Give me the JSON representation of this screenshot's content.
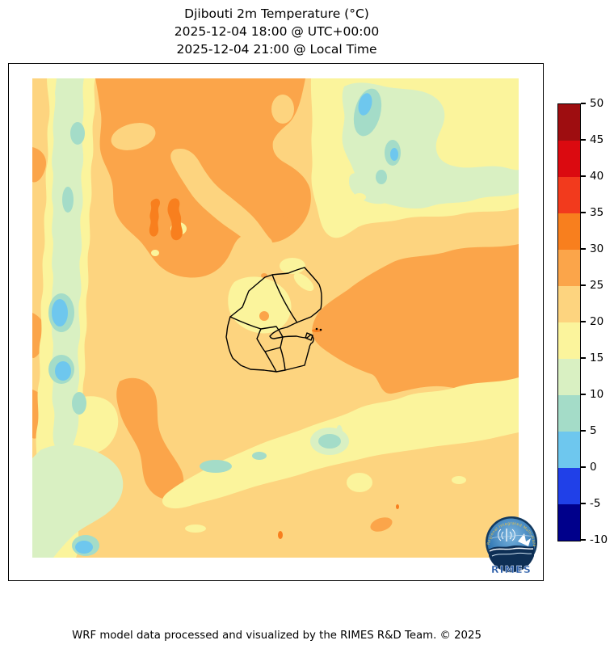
{
  "title": {
    "line1": "Djibouti 2m Temperature (°C)",
    "line2": "2025-12-04 18:00 @ UTC+00:00",
    "line3": "2025-12-04 21:00 @ Local Time"
  },
  "footer": {
    "credit": "WRF model data processed and visualized by the RIMES R&D Team. © 2025"
  },
  "logo": {
    "name": "RIMES",
    "ring_text": "Regional Integrated Multi-Hazard Early Warning System"
  },
  "colorbar": {
    "tick_labels": [
      "50",
      "45",
      "40",
      "35",
      "30",
      "25",
      "20",
      "15",
      "10",
      "5",
      "0",
      "-5",
      "-10"
    ],
    "segment_colors_top_to_bottom": [
      "#9e0d10",
      "#db0a10",
      "#f23a1d",
      "#f87f1e",
      "#fba54a",
      "#fdd47f",
      "#fbf49c",
      "#d9f0c2",
      "#a4dcc8",
      "#6ec7ee",
      "#2040e8",
      "#00008b"
    ]
  },
  "palette": {
    "c45_50": "#9e0d10",
    "c40_45": "#db0a10",
    "c35_40": "#f23a1d",
    "c30_35": "#f87f1e",
    "c25_30": "#fba54a",
    "c20_25": "#fdd47f",
    "c15_20": "#fbf49c",
    "c10_15": "#d9f0c2",
    "c5_10": "#a4dcc8",
    "c0_5": "#6ec7ee",
    "cm5_0": "#2040e8",
    "cm10_m5": "#00008b",
    "outline": "#000000"
  },
  "chart_data": {
    "type": "heatmap",
    "subtype": "filled-contour-map",
    "variable": "2m Temperature",
    "units": "°C",
    "region": "Djibouti and surrounding area (Horn of Africa)",
    "valid_time_utc": "2025-12-04 18:00",
    "valid_time_local": "2025-12-04 21:00",
    "contour_levels": [
      -10,
      -5,
      0,
      5,
      10,
      15,
      20,
      25,
      30,
      35,
      40,
      45,
      50
    ],
    "level_colors": [
      "#00008b",
      "#2040e8",
      "#6ec7ee",
      "#a4dcc8",
      "#d9f0c2",
      "#fbf49c",
      "#fdd47f",
      "#fba54a",
      "#f87f1e",
      "#f23a1d",
      "#db0a10",
      "#9e0d10"
    ],
    "observed_value_range": [
      0,
      35
    ],
    "legend_position": "right",
    "features": [
      "Dominant 20-25°C (sand) background across the domain",
      "Large 25-30°C orange mass over the north-central highlands extending from the top edge",
      "Large 25-30°C orange mass east/southeast of Djibouti over the Gulf of Aden coast",
      "Two small 30-35°C hot spots near the upper-left of the central orange mass",
      "Pale-yellow 15-20°C band along the west edge with a 10-15°C green stripe inside it",
      "5-10°C teal and 0-5°C light-blue pockets inside the western green stripe",
      "Cool 10-15°C green area with 5-10°C/0-5°C pockets in the upper-right (highlands)",
      "15-20°C band sweeping across the lower-right; green with a light-blue pocket in the lower-left corner",
      "Djibouti national and regional boundaries drawn in black around the Gulf of Tadjoura"
    ]
  }
}
